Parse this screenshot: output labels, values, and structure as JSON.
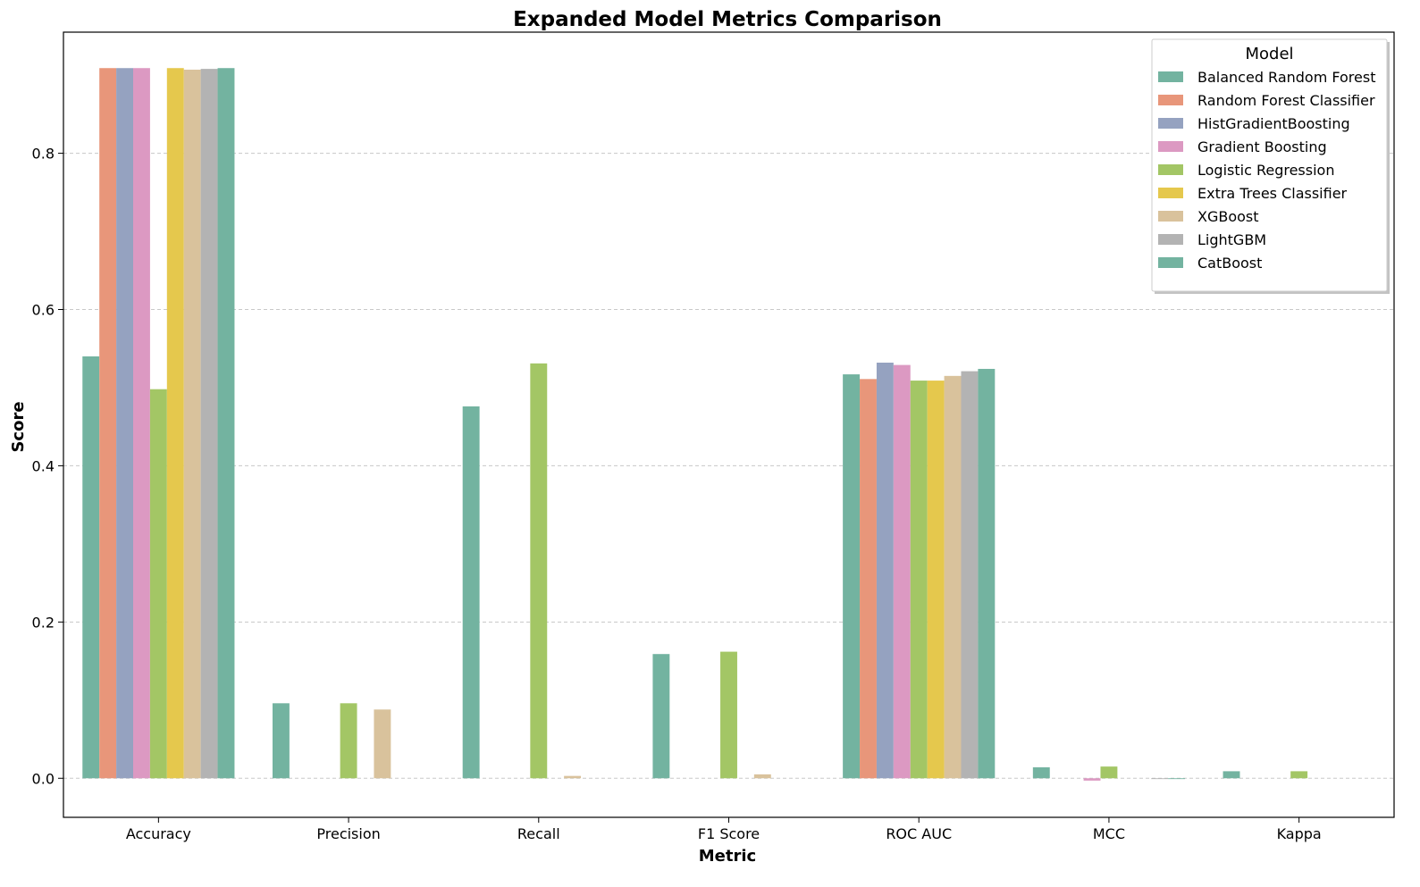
{
  "chart_data": {
    "type": "bar",
    "title": "Expanded Model Metrics Comparison",
    "xlabel": "Metric",
    "ylabel": "Score",
    "categories": [
      "Accuracy",
      "Precision",
      "Recall",
      "F1 Score",
      "ROC AUC",
      "MCC",
      "Kappa"
    ],
    "ylim": [
      -0.05,
      0.955
    ],
    "yticks": [
      0.0,
      0.2,
      0.4,
      0.6,
      0.8
    ],
    "ytick_labels": [
      "0.0",
      "0.2",
      "0.4",
      "0.6",
      "0.8"
    ],
    "grid": "y-dashed",
    "legend": {
      "title": "Model",
      "placement": "top-right"
    },
    "series": [
      {
        "name": "Balanced Random Forest",
        "color": "#73b3a0",
        "values": [
          0.54,
          0.096,
          0.476,
          0.159,
          0.517,
          0.014,
          0.009
        ]
      },
      {
        "name": "Random Forest Classifier",
        "color": "#e8967a",
        "values": [
          0.909,
          0.0,
          0.0,
          0.0,
          0.511,
          0.0,
          0.0
        ]
      },
      {
        "name": "HistGradientBoosting",
        "color": "#95a2c0",
        "values": [
          0.909,
          0.0,
          0.0,
          0.0,
          0.532,
          0.0,
          0.0
        ]
      },
      {
        "name": "Gradient Boosting",
        "color": "#dc99c2",
        "values": [
          0.909,
          0.0,
          0.0,
          0.0,
          0.529,
          -0.003,
          0.0
        ]
      },
      {
        "name": "Logistic Regression",
        "color": "#a3c665",
        "values": [
          0.498,
          0.096,
          0.531,
          0.162,
          0.509,
          0.015,
          0.009
        ]
      },
      {
        "name": "Extra Trees Classifier",
        "color": "#e5c84d",
        "values": [
          0.909,
          0.0,
          0.0,
          0.0,
          0.509,
          0.0,
          0.0
        ]
      },
      {
        "name": "XGBoost",
        "color": "#d9c29c",
        "values": [
          0.907,
          0.088,
          0.003,
          0.005,
          0.515,
          0.0,
          0.0
        ]
      },
      {
        "name": "LightGBM",
        "color": "#b3b3b3",
        "values": [
          0.908,
          0.0,
          0.0,
          0.0,
          0.521,
          -0.001,
          0.0
        ]
      },
      {
        "name": "CatBoost",
        "color": "#73b3a0",
        "values": [
          0.909,
          0.0,
          0.0,
          0.0,
          0.524,
          -0.001,
          0.0
        ]
      }
    ]
  }
}
